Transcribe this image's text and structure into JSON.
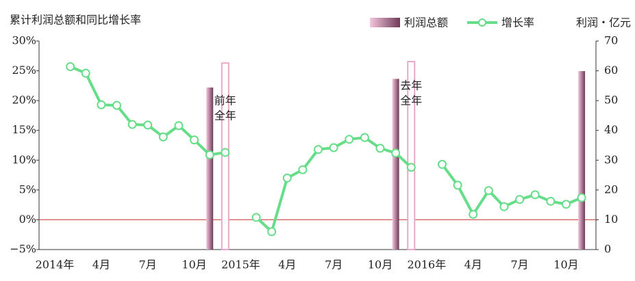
{
  "chart_data": {
    "type": "bar_line",
    "title": "累计利润总额和同比增长率",
    "y2_label": "利润・亿元",
    "categories": [
      "2014年",
      null,
      null,
      "4月",
      null,
      null,
      "7月",
      null,
      null,
      "10月",
      null,
      null,
      "2015年",
      null,
      null,
      "4月",
      null,
      null,
      "7月",
      null,
      null,
      "10月",
      null,
      null,
      "2016年",
      null,
      null,
      "4月",
      null,
      null,
      "7月",
      null,
      null,
      "10月",
      null
    ],
    "series": [
      {
        "name": "利润总额",
        "type": "bar",
        "axis": "y2",
        "color": "#8a4a6e",
        "values": [
          null,
          null,
          null,
          null,
          null,
          null,
          null,
          null,
          null,
          null,
          54.4,
          62.6,
          null,
          null,
          null,
          null,
          null,
          null,
          null,
          null,
          null,
          null,
          57.3,
          63.1,
          null,
          null,
          null,
          null,
          null,
          null,
          null,
          null,
          null,
          null,
          59.9
        ]
      },
      {
        "name": "增长率",
        "type": "line",
        "color": "#66dd88",
        "values": [
          null,
          25.7,
          24.6,
          19.3,
          19.2,
          16.0,
          15.9,
          13.9,
          15.8,
          13.4,
          10.9,
          11.3,
          null,
          0.4,
          -2.0,
          7.0,
          8.4,
          11.8,
          12.1,
          13.5,
          13.8,
          12.0,
          11.2,
          8.8,
          null,
          9.3,
          5.8,
          0.9,
          4.9,
          2.2,
          3.4,
          4.2,
          3.1,
          2.6,
          3.7
        ]
      }
    ],
    "hollow_bars": [
      11,
      23
    ],
    "annotations": [
      {
        "lines": [
          "前年",
          "全年"
        ]
      },
      {
        "lines": [
          "去年",
          "全年"
        ]
      }
    ],
    "ylim": [
      -5,
      30
    ],
    "yticks": [
      {
        "value": -5,
        "label": "−5%"
      },
      {
        "value": 0,
        "label": "0%"
      },
      {
        "value": 5,
        "label": "5%"
      },
      {
        "value": 10,
        "label": "10%"
      },
      {
        "value": 15,
        "label": "15%"
      },
      {
        "value": 20,
        "label": "20%"
      },
      {
        "value": 25,
        "label": "25%"
      },
      {
        "value": 30,
        "label": "30%"
      }
    ],
    "y2lim": [
      0,
      70
    ],
    "y2ticks": [
      0,
      10,
      20,
      30,
      40,
      50,
      60,
      70
    ],
    "zero_line_color": "#cc3333",
    "legend": "top-right"
  }
}
